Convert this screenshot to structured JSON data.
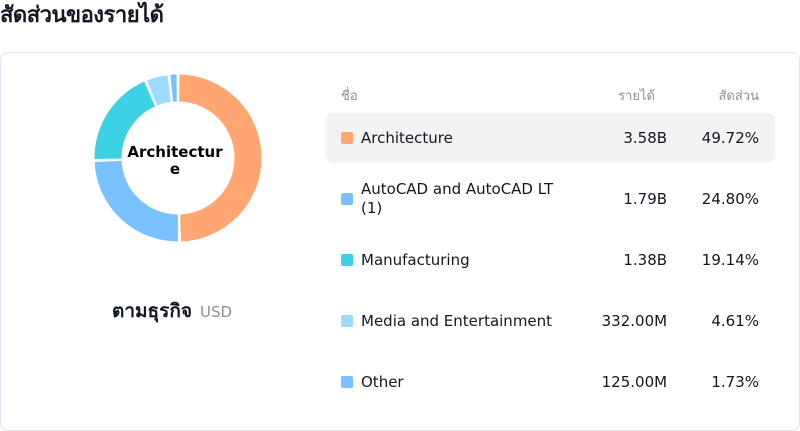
{
  "page": {
    "title": "สัดส่วนของรายได้"
  },
  "donut": {
    "center_label": "Architecture"
  },
  "caption": {
    "name": "ตามธุรกิจ",
    "currency": "USD"
  },
  "table": {
    "headers": {
      "name": "ชื่อ",
      "revenue": "รายได้",
      "share": "สัดส่วน"
    },
    "rows": [
      {
        "name": "Architecture",
        "revenue": "3.58B",
        "share": "49.72%",
        "color": "#FFA672",
        "selected": true
      },
      {
        "name": "AutoCAD and AutoCAD LT (1)",
        "revenue": "1.79B",
        "share": "24.80%",
        "color": "#79C2FF",
        "selected": false
      },
      {
        "name": "Manufacturing",
        "revenue": "1.38B",
        "share": "19.14%",
        "color": "#3DD1E6",
        "selected": false
      },
      {
        "name": "Media and Entertainment",
        "revenue": "332.00M",
        "share": "4.61%",
        "color": "#9ADBFF",
        "selected": false
      },
      {
        "name": "Other",
        "revenue": "125.00M",
        "share": "1.73%",
        "color": "#79C2FF",
        "selected": false
      }
    ]
  },
  "chart_data": {
    "type": "pie",
    "categories": [
      "Architecture",
      "AutoCAD and AutoCAD LT (1)",
      "Manufacturing",
      "Media and Entertainment",
      "Other"
    ],
    "values": [
      49.72,
      24.8,
      19.14,
      4.61,
      1.73
    ],
    "colors": [
      "#FFA672",
      "#79C2FF",
      "#3DD1E6",
      "#9ADBFF",
      "#79C2FF"
    ],
    "title": "",
    "donut": true
  }
}
